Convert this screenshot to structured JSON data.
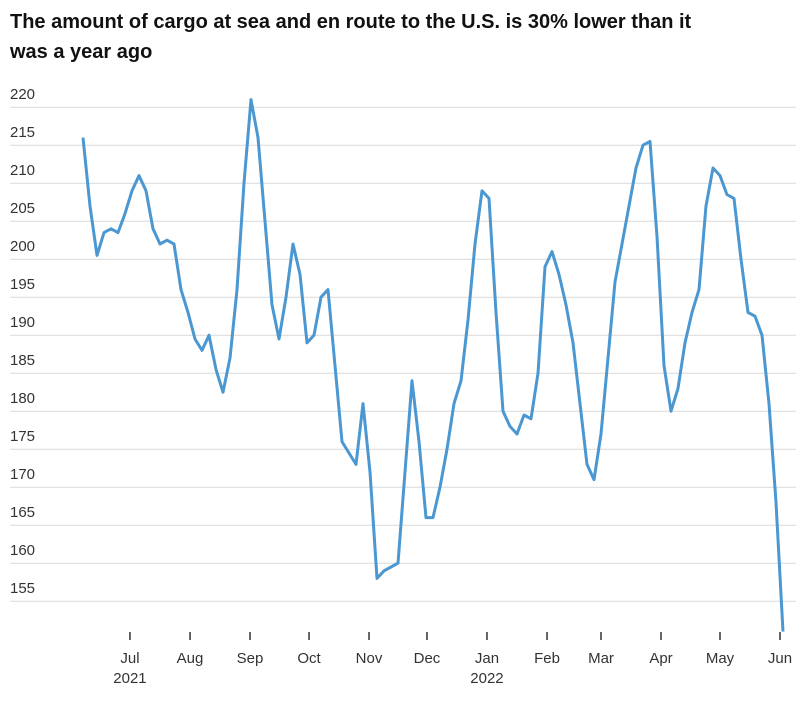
{
  "chart_data": {
    "type": "line",
    "title_lines": [
      "The amount of cargo at sea and en route to the U.S. is 30% lower than it",
      "was a year ago"
    ],
    "x": [
      0,
      1,
      2,
      3,
      4,
      5,
      6,
      7,
      8,
      9,
      10,
      11,
      12,
      13,
      14,
      15,
      16,
      17,
      18,
      19,
      20,
      21,
      22,
      23,
      24,
      25,
      26,
      27,
      28,
      29,
      30,
      31,
      32,
      33,
      34,
      35,
      36,
      37,
      38,
      39,
      40,
      41,
      42,
      43,
      44,
      45,
      46,
      47,
      48,
      49,
      50,
      51,
      52,
      53,
      54,
      55,
      56,
      57,
      58,
      59,
      60,
      61,
      62,
      63,
      64,
      65,
      66,
      67,
      68,
      69,
      70,
      71,
      72,
      73,
      74,
      75,
      76,
      77,
      78,
      79,
      80,
      81,
      82,
      83,
      84,
      85,
      86,
      87,
      88,
      89,
      90,
      91,
      92,
      93,
      94,
      95,
      96,
      97,
      98,
      99,
      100
    ],
    "series": [
      {
        "name": null,
        "color": "#4b97d1",
        "values": [
          216,
          207,
          200.5,
          203.5,
          204,
          203.5,
          206,
          209,
          211,
          209,
          204,
          202,
          202.5,
          202,
          196,
          193,
          189.5,
          188,
          190,
          185.5,
          182.5,
          187,
          196,
          210,
          221,
          216,
          205,
          194,
          189.5,
          195,
          202,
          198,
          189,
          190,
          195,
          196,
          186,
          176,
          174.5,
          173,
          181,
          172,
          158,
          159,
          159.5,
          160,
          172,
          184,
          176,
          166,
          166,
          170,
          175,
          181,
          184,
          192,
          202,
          209,
          208,
          193,
          180,
          178,
          177,
          179.5,
          179,
          185,
          199,
          201,
          198,
          194,
          189,
          181,
          173,
          171,
          177,
          187,
          197,
          202,
          207,
          212,
          215,
          215.5,
          203,
          186,
          180,
          183,
          189,
          193,
          196,
          207,
          212,
          211,
          208.5,
          208,
          200,
          193,
          192.5,
          190,
          181,
          168,
          151
        ]
      }
    ],
    "xlim": [
      0,
      100
    ],
    "xticks": [
      {
        "value": 6.71,
        "label": "Jul",
        "year": "2021"
      },
      {
        "value": 15.29,
        "label": "Aug"
      },
      {
        "value": 23.86,
        "label": "Sep"
      },
      {
        "value": 32.29,
        "label": "Oct"
      },
      {
        "value": 40.86,
        "label": "Nov"
      },
      {
        "value": 49.14,
        "label": "Dec"
      },
      {
        "value": 57.71,
        "label": "Jan",
        "year": "2022"
      },
      {
        "value": 66.29,
        "label": "Feb"
      },
      {
        "value": 74,
        "label": "Mar"
      },
      {
        "value": 82.57,
        "label": "Apr"
      },
      {
        "value": 91,
        "label": "May"
      },
      {
        "value": 99.57,
        "label": "Jun"
      }
    ],
    "ylim": [
      151,
      222
    ],
    "yticks": [
      155,
      160,
      165,
      170,
      175,
      180,
      185,
      190,
      195,
      200,
      205,
      210,
      215,
      220
    ],
    "grid": true
  }
}
